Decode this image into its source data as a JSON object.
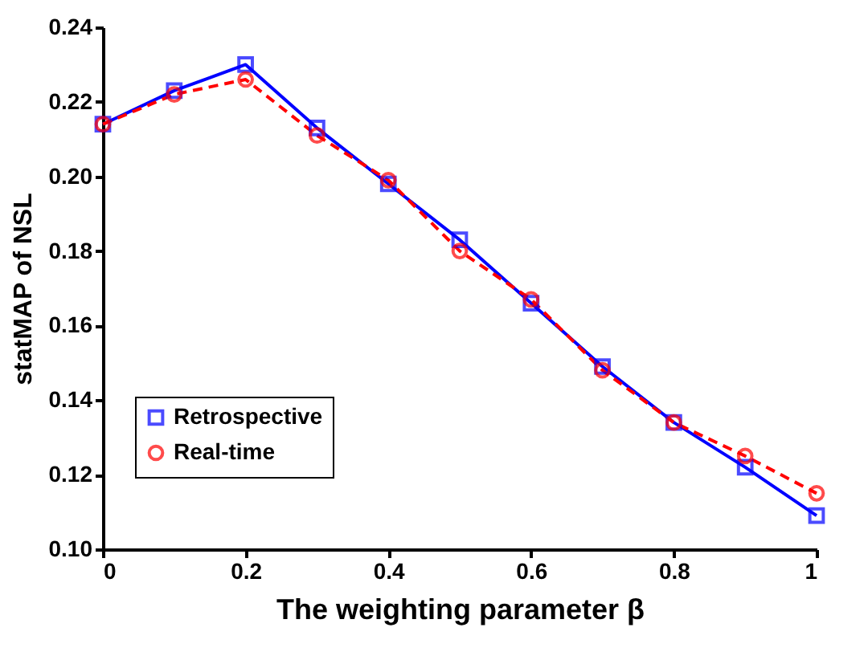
{
  "chart_data": {
    "type": "line",
    "xlabel": "The weighting parameter β",
    "ylabel": "statMAP of NSL",
    "x": [
      0,
      0.1,
      0.2,
      0.3,
      0.4,
      0.5,
      0.6,
      0.7,
      0.8,
      0.9,
      1
    ],
    "series": [
      {
        "name": "Retrospective",
        "color": "#0000ff",
        "marker": "square",
        "line_style": "solid",
        "values": [
          0.214,
          0.223,
          0.23,
          0.213,
          0.198,
          0.183,
          0.166,
          0.149,
          0.134,
          0.122,
          0.109
        ]
      },
      {
        "name": "Real-time",
        "color": "#ff0000",
        "marker": "circle",
        "line_style": "dashed",
        "values": [
          0.214,
          0.222,
          0.226,
          0.211,
          0.199,
          0.18,
          0.167,
          0.148,
          0.134,
          0.125,
          0.115
        ]
      }
    ],
    "xlim": [
      0,
      1
    ],
    "xticks": [
      0,
      0.2,
      0.4,
      0.6,
      0.8,
      1
    ],
    "ylim": [
      0.1,
      0.24
    ],
    "yticks": [
      {
        "value": 0.1,
        "label": "0.10"
      },
      {
        "value": 0.12,
        "label": "0.12"
      },
      {
        "value": 0.14,
        "label": "0.14"
      },
      {
        "value": 0.16,
        "label": "0.16"
      },
      {
        "value": 0.18,
        "label": "0.18"
      },
      {
        "value": 0.2,
        "label": "0.20"
      },
      {
        "value": 0.22,
        "label": "0.22"
      },
      {
        "value": 0.24,
        "label": "0.24"
      }
    ],
    "grid": false,
    "legend": "bottom left"
  }
}
